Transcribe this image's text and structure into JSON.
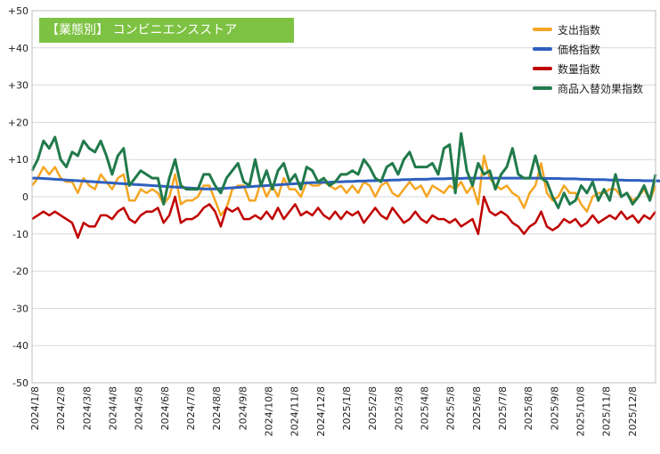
{
  "chart_data": {
    "type": "line",
    "title": "【業態別】 コンビニエンスストア",
    "xlabel": "",
    "ylabel": "",
    "ylim": [
      -50,
      50
    ],
    "ytick_labels": [
      "+50",
      "+40",
      "+30",
      "+20",
      "+10",
      "0",
      "-10",
      "-20",
      "-30",
      "-40",
      "-50"
    ],
    "grid": true,
    "legend_position": "top-right",
    "x_tick_labels": [
      "2024/1/8",
      "2024/2/8",
      "2024/3/8",
      "2024/4/8",
      "2024/5/8",
      "2024/6/8",
      "2024/7/8",
      "2024/8/8",
      "2024/9/8",
      "2024/10/8",
      "2024/11/8",
      "2024/12/8",
      "2025/1/8",
      "2025/2/8",
      "2025/3/8",
      "2025/4/8",
      "2025/5/8",
      "2025/6/8",
      "2025/7/8",
      "2025/8/8",
      "2025/9/8",
      "2025/10/8",
      "2025/11/8",
      "2025/12/8"
    ],
    "series": [
      {
        "name": "支出指数",
        "color": "#f5a623",
        "values": [
          3,
          5,
          8,
          6,
          8,
          5,
          4,
          4,
          1,
          5,
          3,
          2,
          6,
          4,
          2,
          5,
          6,
          -1,
          -1,
          2,
          1,
          2,
          1,
          -2,
          0,
          6,
          -2,
          -1,
          -1,
          0,
          3,
          3,
          -1,
          -5,
          -3,
          2,
          3,
          3,
          -1,
          -1,
          4,
          0,
          3,
          0,
          5,
          2,
          2,
          0,
          4,
          3,
          3,
          4,
          3,
          2,
          3,
          1,
          3,
          1,
          4,
          3,
          0,
          3,
          4,
          1,
          0,
          2,
          4,
          2,
          3,
          0,
          3,
          2,
          1,
          3,
          2,
          4,
          1,
          3,
          -2,
          11,
          5,
          3,
          2,
          3,
          1,
          0,
          -3,
          1,
          3,
          9,
          1,
          -1,
          0,
          3,
          1,
          1,
          -2,
          -4,
          0,
          1,
          1,
          2,
          2,
          0,
          1,
          -1,
          0,
          2,
          -1,
          3
        ]
      },
      {
        "name": "価格指数",
        "color": "#2f5fbf",
        "values": [
          5,
          5,
          4.9,
          4.8,
          4.7,
          4.6,
          4.5,
          4.4,
          4.3,
          4.2,
          4.1,
          4,
          3.9,
          3.8,
          3.7,
          3.6,
          3.5,
          3.4,
          3.3,
          3.2,
          3.1,
          3,
          2.9,
          2.8,
          2.7,
          2.6,
          2.5,
          2.4,
          2.3,
          2.2,
          2.1,
          2.1,
          2.1,
          2.2,
          2.3,
          2.4,
          2.5,
          2.6,
          2.7,
          2.8,
          2.9,
          3,
          3.1,
          3.2,
          3.3,
          3.4,
          3.5,
          3.6,
          3.7,
          3.8,
          3.8,
          3.9,
          3.9,
          4,
          4,
          4.1,
          4.1,
          4.2,
          4.2,
          4.3,
          4.3,
          4.4,
          4.4,
          4.5,
          4.5,
          4.6,
          4.6,
          4.7,
          4.7,
          4.7,
          4.8,
          4.8,
          4.8,
          4.9,
          4.9,
          4.9,
          5,
          5,
          5,
          5,
          5,
          5,
          5,
          5,
          5,
          5,
          5,
          5,
          5,
          5,
          4.9,
          4.9,
          4.9,
          4.8,
          4.8,
          4.8,
          4.7,
          4.7,
          4.6,
          4.6,
          4.6,
          4.5,
          4.5,
          4.5,
          4.4,
          4.4,
          4.4,
          4.3,
          4.3,
          4.3,
          4.2,
          4.2
        ]
      },
      {
        "name": "数量指数",
        "color": "#c00000",
        "values": [
          -6,
          -5,
          -4,
          -5,
          -4,
          -5,
          -6,
          -7,
          -11,
          -7,
          -8,
          -8,
          -5,
          -5,
          -6,
          -4,
          -3,
          -6,
          -7,
          -5,
          -4,
          -4,
          -3,
          -7,
          -5,
          0,
          -7,
          -6,
          -6,
          -5,
          -3,
          -2,
          -4,
          -8,
          -3,
          -4,
          -3,
          -6,
          -6,
          -5,
          -6,
          -4,
          -6,
          -3,
          -6,
          -4,
          -2,
          -5,
          -4,
          -5,
          -3,
          -5,
          -6,
          -4,
          -6,
          -4,
          -5,
          -4,
          -7,
          -5,
          -3,
          -5,
          -6,
          -3,
          -5,
          -7,
          -6,
          -4,
          -6,
          -7,
          -5,
          -6,
          -6,
          -7,
          -6,
          -8,
          -7,
          -6,
          -10,
          0,
          -4,
          -5,
          -4,
          -5,
          -7,
          -8,
          -10,
          -8,
          -7,
          -4,
          -8,
          -9,
          -8,
          -6,
          -7,
          -6,
          -8,
          -7,
          -5,
          -7,
          -6,
          -5,
          -6,
          -4,
          -6,
          -5,
          -7,
          -5,
          -6,
          -4
        ]
      },
      {
        "name": "商品入替効果指数",
        "color": "#217a4b",
        "values": [
          7,
          10,
          15,
          13,
          16,
          10,
          8,
          12,
          11,
          15,
          13,
          12,
          15,
          11,
          6,
          11,
          13,
          3,
          5,
          7,
          6,
          5,
          5,
          -2,
          5,
          10,
          3,
          2,
          2,
          2,
          6,
          6,
          3,
          1,
          5,
          7,
          9,
          4,
          3,
          10,
          3,
          7,
          2,
          7,
          9,
          4,
          6,
          2,
          8,
          7,
          4,
          5,
          3,
          4,
          6,
          6,
          7,
          6,
          10,
          8,
          5,
          4,
          8,
          9,
          6,
          10,
          12,
          8,
          8,
          8,
          9,
          6,
          13,
          14,
          1,
          17,
          7,
          3,
          9,
          6,
          7,
          2,
          6,
          8,
          13,
          6,
          5,
          5,
          11,
          5,
          4,
          0,
          -3,
          1,
          -2,
          -1,
          3,
          1,
          4,
          -1,
          2,
          -1,
          6,
          0,
          1,
          -2,
          0,
          3,
          -1,
          6
        ]
      }
    ]
  }
}
